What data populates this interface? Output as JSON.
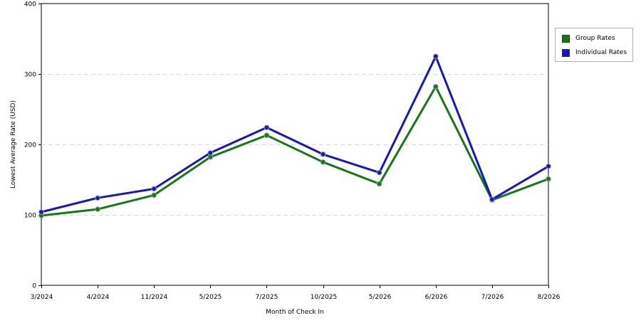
{
  "chart_data": {
    "type": "line",
    "title": "",
    "xlabel": "Month of Check In",
    "ylabel": "Lowest Average Rate (USD)",
    "categories": [
      "3/2024",
      "4/2024",
      "11/2024",
      "5/2025",
      "7/2025",
      "10/2025",
      "5/2026",
      "6/2026",
      "7/2026",
      "8/2026"
    ],
    "ylim": [
      0,
      400
    ],
    "yticks": [
      0,
      100,
      200,
      300,
      400
    ],
    "grid": true,
    "legend_position": "right",
    "series": [
      {
        "name": "Group Rates",
        "color": "#137a13",
        "values": [
          99,
          108,
          128,
          182,
          213,
          175,
          144,
          282,
          121,
          151
        ]
      },
      {
        "name": "Individual Rates",
        "color": "#1515cc",
        "values": [
          104,
          124,
          137,
          188,
          224,
          186,
          160,
          325,
          122,
          169
        ]
      }
    ]
  }
}
